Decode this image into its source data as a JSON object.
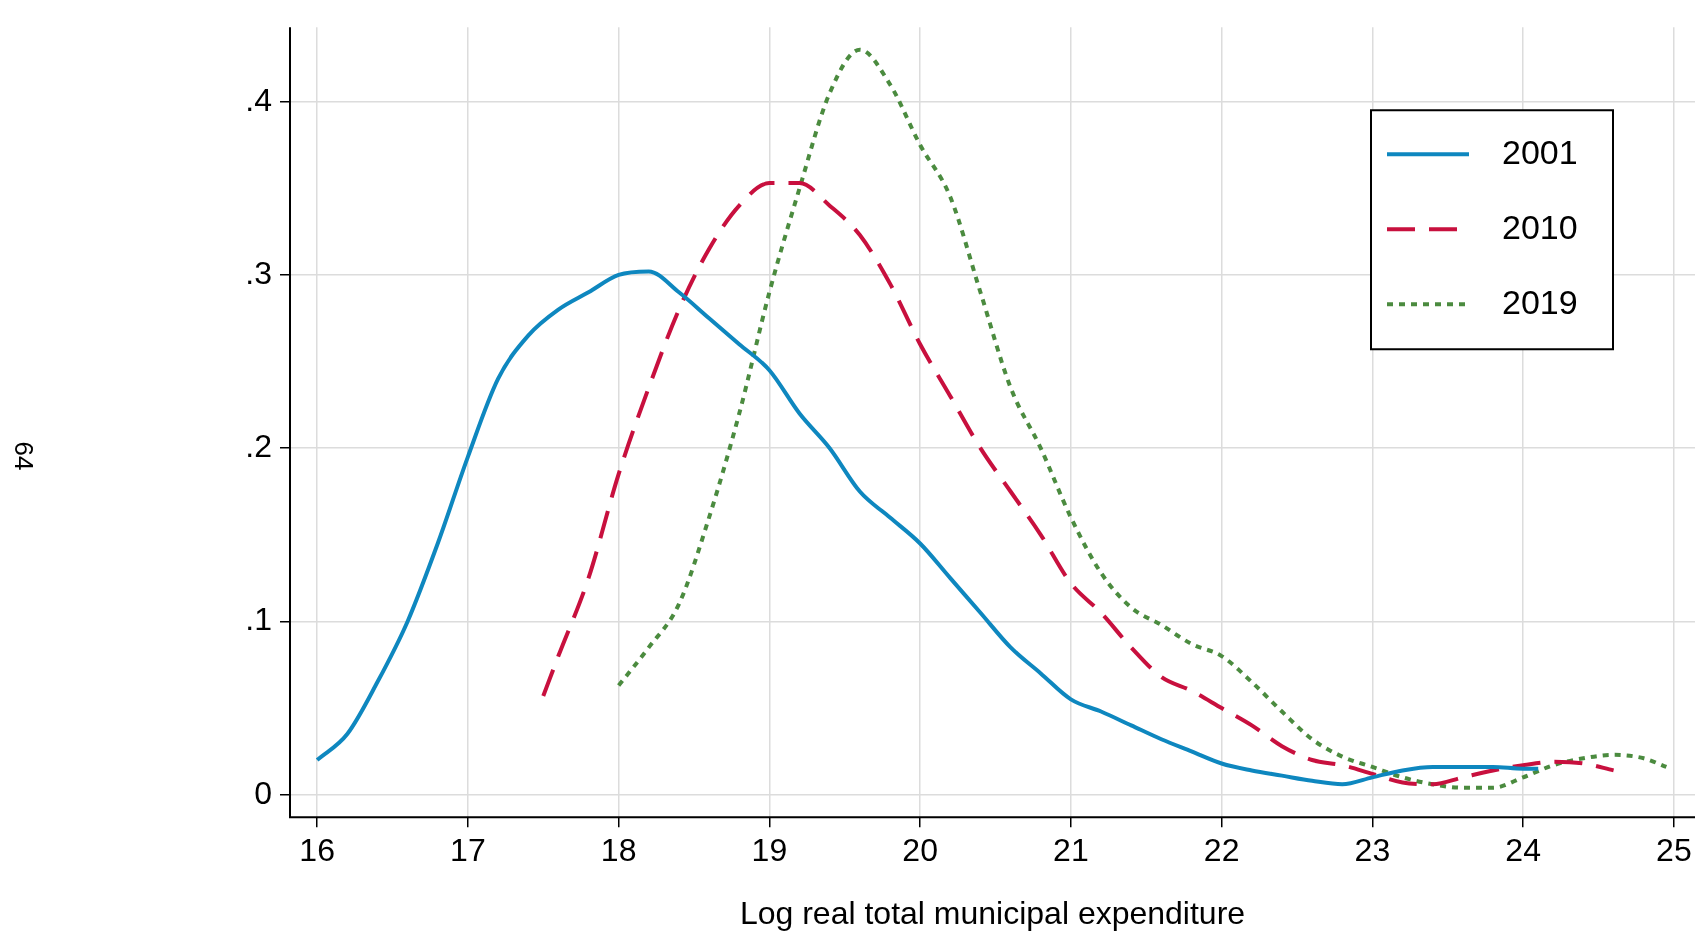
{
  "chart_data": {
    "type": "line",
    "xlabel": "Log real total municipal expenditure",
    "annotations": [
      "64"
    ],
    "xlim": [
      15.82,
      25.14
    ],
    "xticks": [
      16,
      17,
      18,
      19,
      20,
      21,
      22,
      23,
      24,
      25
    ],
    "ylim": [
      -0.013,
      0.443
    ],
    "yticks": [
      {
        "value": 0,
        "label": "0"
      },
      {
        "value": 0.1,
        "label": ".1"
      },
      {
        "value": 0.2,
        "label": ".2"
      },
      {
        "value": 0.3,
        "label": ".3"
      },
      {
        "value": 0.4,
        "label": ".4"
      }
    ],
    "grid": true,
    "legend": "top right",
    "marker": "none",
    "series": [
      {
        "name": "2001",
        "color": "#0e87bf",
        "line_style": "solid",
        "x": [
          16,
          16.2,
          16.4,
          16.6,
          16.8,
          17,
          17.2,
          17.4,
          17.6,
          17.8,
          18,
          18.2,
          18.4,
          18.6,
          18.8,
          19,
          19.2,
          19.4,
          19.6,
          19.8,
          20,
          20.2,
          20.4,
          20.6,
          20.8,
          21,
          21.2,
          21.4,
          21.6,
          21.8,
          22,
          22.2,
          22.4,
          22.6,
          22.8,
          23,
          23.2,
          23.4,
          23.6,
          23.8,
          24,
          24.1
        ],
        "values": [
          0.02,
          0.035,
          0.065,
          0.1,
          0.145,
          0.195,
          0.24,
          0.265,
          0.28,
          0.29,
          0.3,
          0.302,
          0.29,
          0.275,
          0.26,
          0.245,
          0.22,
          0.2,
          0.175,
          0.16,
          0.145,
          0.125,
          0.105,
          0.085,
          0.07,
          0.055,
          0.048,
          0.04,
          0.032,
          0.025,
          0.018,
          0.014,
          0.011,
          0.008,
          0.006,
          0.01,
          0.014,
          0.016,
          0.016,
          0.016,
          0.015,
          0.015
        ]
      },
      {
        "name": "2010",
        "color": "#c8103e",
        "line_style": "dashed",
        "x": [
          17.5,
          17.6,
          17.8,
          18,
          18.2,
          18.4,
          18.6,
          18.8,
          19,
          19.2,
          19.4,
          19.6,
          19.8,
          20,
          20.2,
          20.4,
          20.6,
          20.8,
          21,
          21.2,
          21.4,
          21.6,
          21.8,
          22,
          22.2,
          22.4,
          22.6,
          22.8,
          23,
          23.2,
          23.4,
          23.6,
          23.8,
          24,
          24.2,
          24.4,
          24.6
        ],
        "values": [
          0.057,
          0.08,
          0.125,
          0.185,
          0.235,
          0.28,
          0.315,
          0.34,
          0.353,
          0.353,
          0.34,
          0.323,
          0.295,
          0.26,
          0.23,
          0.2,
          0.175,
          0.15,
          0.122,
          0.105,
          0.085,
          0.068,
          0.06,
          0.05,
          0.04,
          0.028,
          0.02,
          0.017,
          0.012,
          0.007,
          0.006,
          0.01,
          0.014,
          0.017,
          0.019,
          0.018,
          0.014
        ]
      },
      {
        "name": "2019",
        "color": "#4b8b3f",
        "line_style": "dotted",
        "x": [
          18,
          18.2,
          18.4,
          18.6,
          18.8,
          19,
          19.2,
          19.4,
          19.6,
          19.8,
          20,
          20.2,
          20.4,
          20.6,
          20.8,
          21,
          21.2,
          21.4,
          21.6,
          21.8,
          22,
          22.2,
          22.4,
          22.6,
          22.8,
          23,
          23.2,
          23.4,
          23.6,
          23.8,
          24,
          24.2,
          24.4,
          24.6,
          24.8,
          24.95
        ],
        "values": [
          0.063,
          0.085,
          0.11,
          0.16,
          0.22,
          0.29,
          0.35,
          0.405,
          0.43,
          0.41,
          0.375,
          0.345,
          0.29,
          0.235,
          0.2,
          0.16,
          0.128,
          0.108,
          0.098,
          0.087,
          0.08,
          0.065,
          0.048,
          0.032,
          0.022,
          0.016,
          0.01,
          0.006,
          0.004,
          0.004,
          0.01,
          0.017,
          0.021,
          0.023,
          0.021,
          0.016
        ]
      }
    ]
  }
}
